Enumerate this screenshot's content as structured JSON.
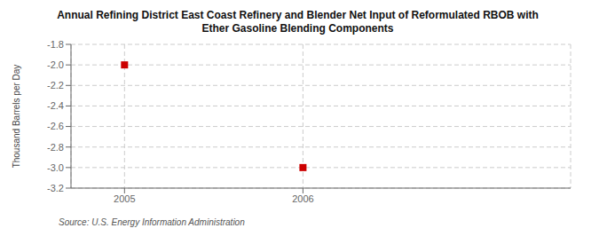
{
  "chart_data": {
    "type": "scatter",
    "title": "Annual Refining District East Coast Refinery and Blender Net Input of Reformulated RBOB with\nEther Gasoline Blending Components",
    "ylabel": "Thousand Barrels per Day",
    "source": "Source: U.S. Energy Information Administration",
    "x": [
      2005,
      2006
    ],
    "values": [
      -2.0,
      -3.0
    ],
    "color": "#cc0000",
    "marker": "square",
    "xlim": [
      2004.7,
      2007.5
    ],
    "xticks": [
      2005,
      2006
    ],
    "ylim": [
      -3.2,
      -1.8
    ],
    "yticks": [
      -3.2,
      {
        "value": -3.0,
        "label": "-3.0"
      },
      -2.8,
      -2.6,
      -2.4,
      -2.2,
      {
        "value": -2.0,
        "label": "-2.0"
      },
      -1.8
    ],
    "grid": true
  }
}
